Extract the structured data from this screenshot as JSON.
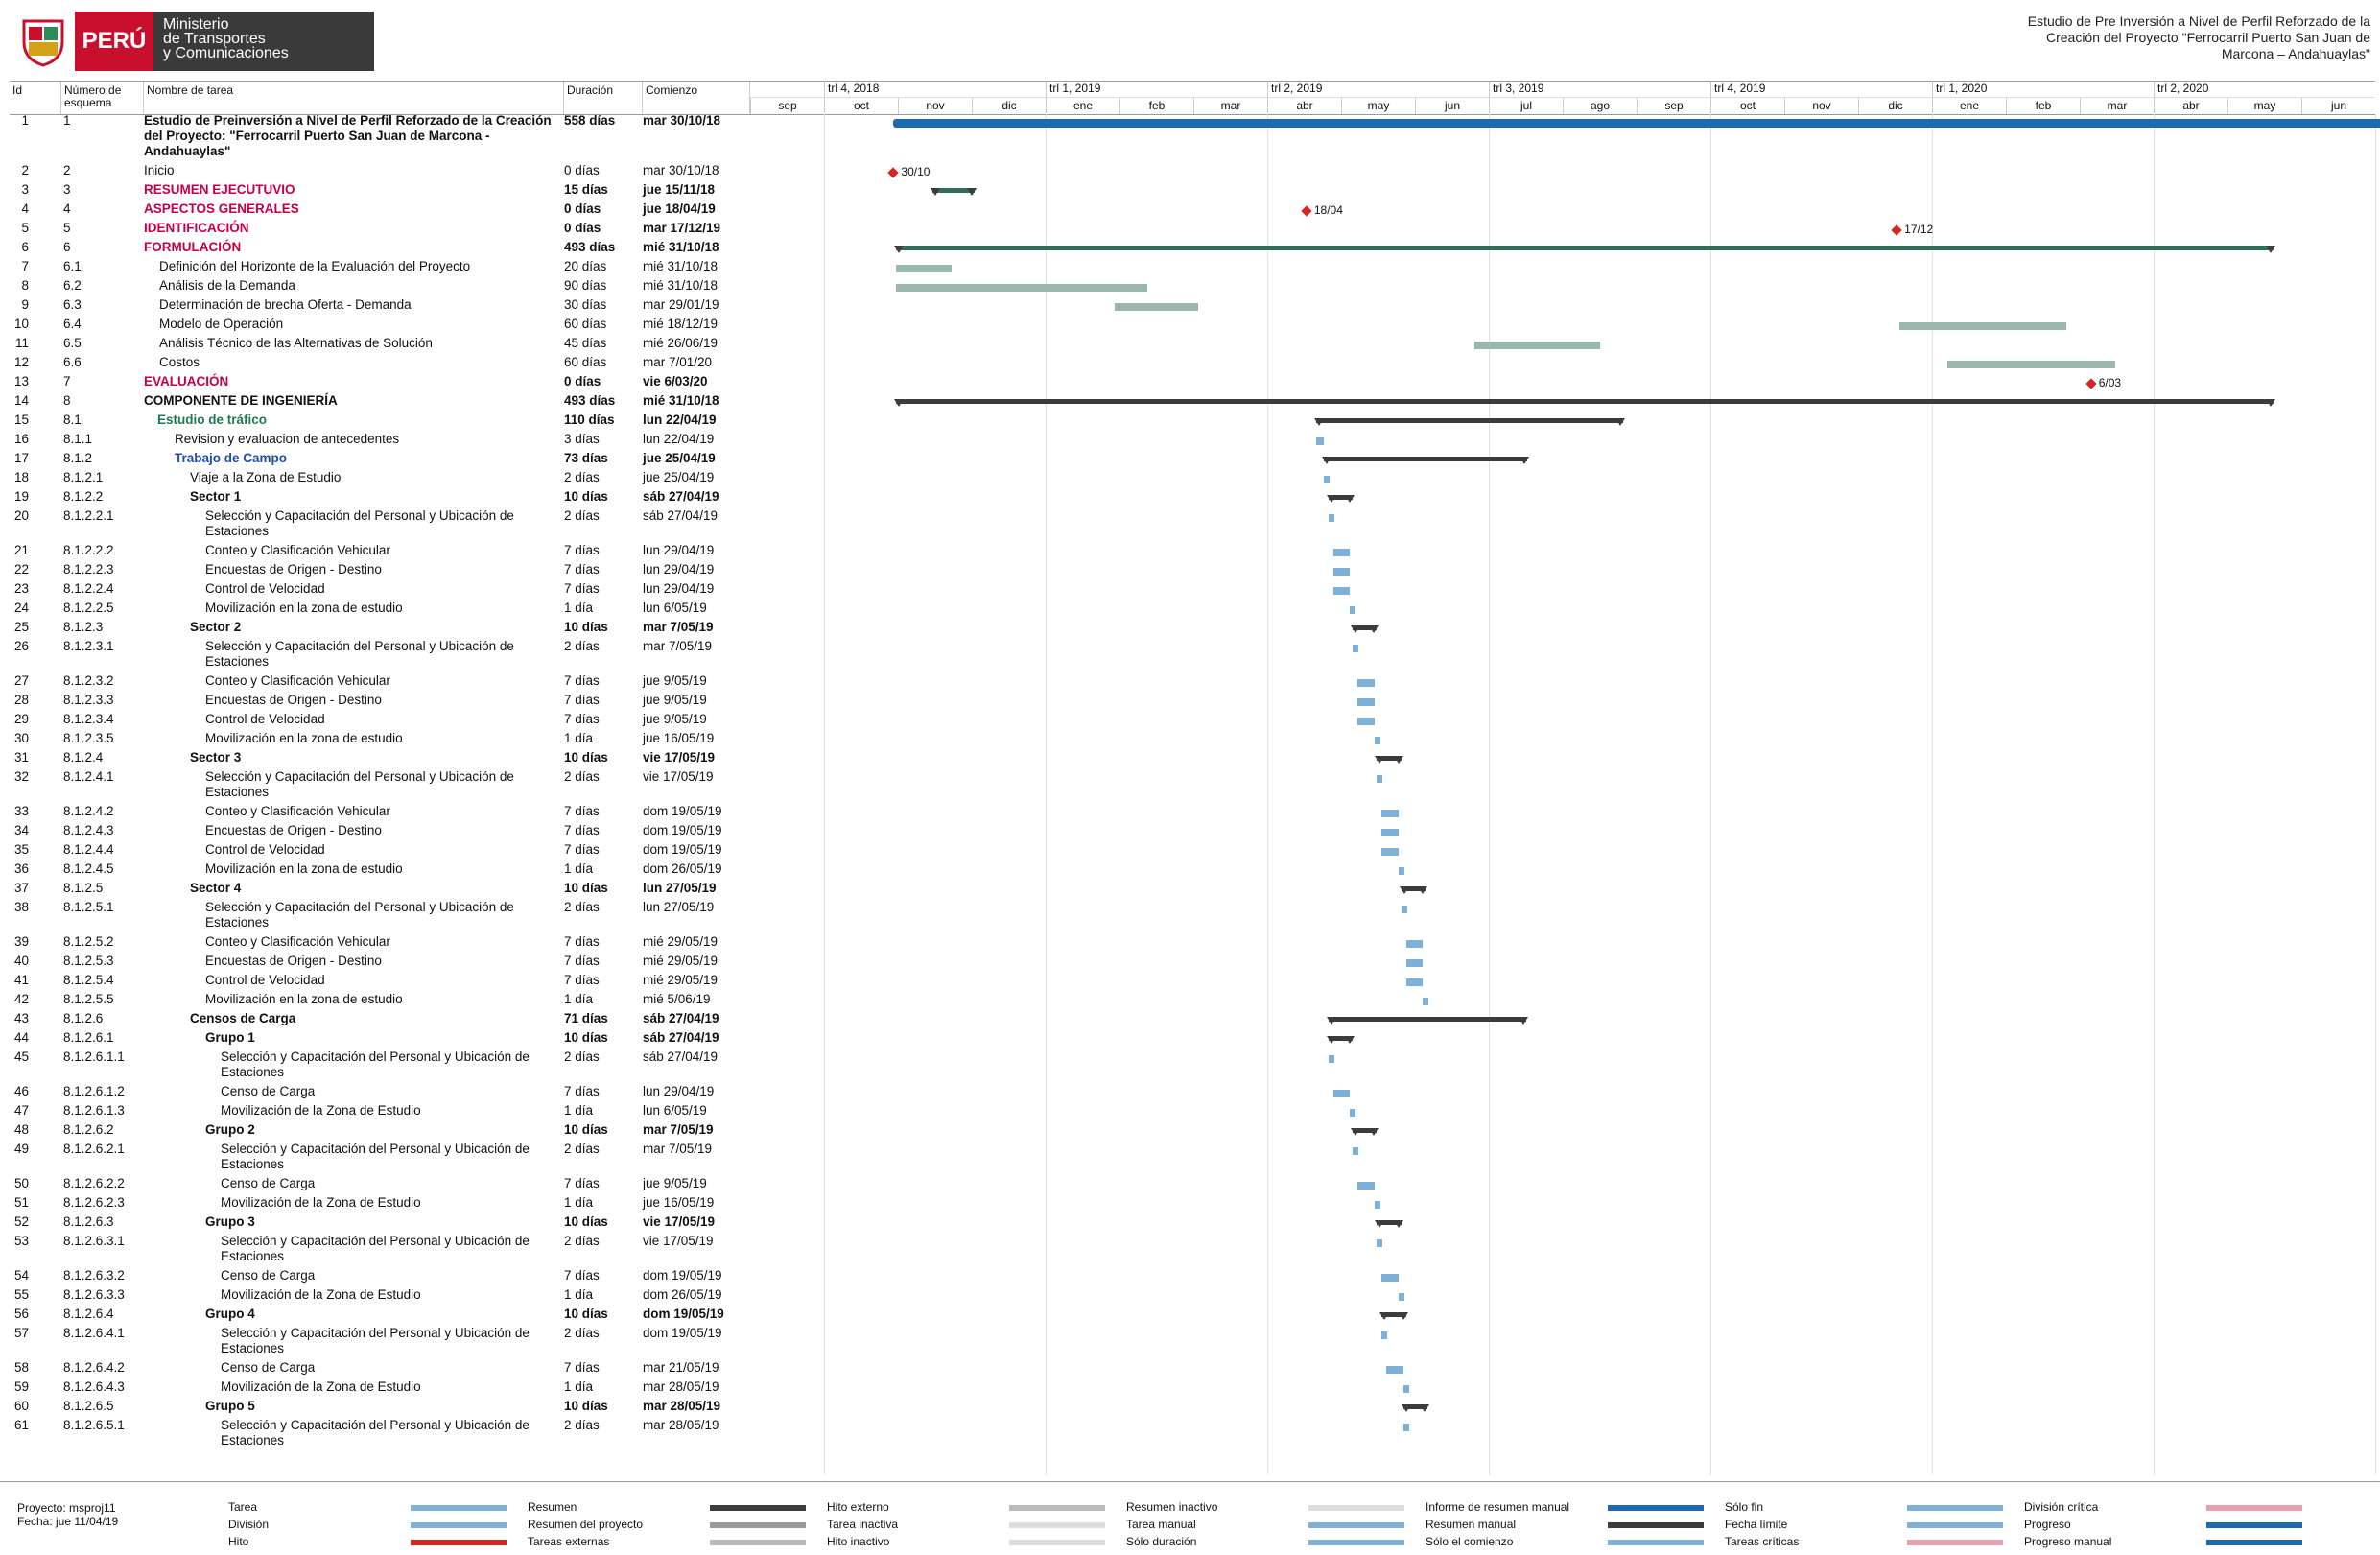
{
  "header": {
    "logo_peru": "PERÚ",
    "logo_ministry": [
      "Ministerio",
      "de Transportes",
      "y Comunicaciones"
    ],
    "right_lines": [
      "Estudio de Pre Inversión a Nivel de Perfil Reforzado de la",
      "Creación del Proyecto \"Ferrocarril Puerto San Juan de",
      "Marcona – Andahuaylas\""
    ]
  },
  "columns": {
    "id": "Id",
    "wbs": "Número de esquema",
    "name": "Nombre de tarea",
    "duration": "Duración",
    "start": "Comienzo"
  },
  "timescale": {
    "quarters": [
      "trl 4, 2018",
      "trl 1, 2019",
      "trl 2, 2019",
      "trl 3, 2019",
      "trl 4, 2019",
      "trl 1, 2020",
      "trl 2, 2020"
    ],
    "months": [
      "sep",
      "oct",
      "nov",
      "dic",
      "ene",
      "feb",
      "mar",
      "abr",
      "may",
      "jun",
      "jul",
      "ago",
      "sep",
      "oct",
      "nov",
      "dic",
      "ene",
      "feb",
      "mar",
      "abr",
      "may",
      "jun"
    ]
  },
  "tasks": [
    {
      "id": "1",
      "wbs": "1",
      "name": "Estudio de Preinversión a Nivel de Perfil Reforzado de la Creación del Proyecto: \"Ferrocarril Puerto San Juan de Marcona - Andahuaylas\"",
      "dur": "558 días",
      "start": "mar 30/10/18",
      "style": "bold"
    },
    {
      "id": "2",
      "wbs": "2",
      "name": "Inicio",
      "dur": "0 días",
      "start": "mar 30/10/18",
      "style": ""
    },
    {
      "id": "3",
      "wbs": "3",
      "name": "RESUMEN EJECUTUVIO",
      "dur": "15 días",
      "start": "jue 15/11/18",
      "style": "red"
    },
    {
      "id": "4",
      "wbs": "4",
      "name": "ASPECTOS GENERALES",
      "dur": "0 días",
      "start": "jue 18/04/19",
      "style": "red"
    },
    {
      "id": "5",
      "wbs": "5",
      "name": "IDENTIFICACIÓN",
      "dur": "0 días",
      "start": "mar 17/12/19",
      "style": "red"
    },
    {
      "id": "6",
      "wbs": "6",
      "name": "FORMULACIÓN",
      "dur": "493 días",
      "start": "mié 31/10/18",
      "style": "red"
    },
    {
      "id": "7",
      "wbs": "6.1",
      "name": "Definición del Horizonte de la Evaluación del Proyecto",
      "dur": "20 días",
      "start": "mié 31/10/18",
      "style": "i1"
    },
    {
      "id": "8",
      "wbs": "6.2",
      "name": "Análisis de la Demanda",
      "dur": "90 días",
      "start": "mié 31/10/18",
      "style": "i1"
    },
    {
      "id": "9",
      "wbs": "6.3",
      "name": "Determinación de brecha Oferta - Demanda",
      "dur": "30 días",
      "start": "mar 29/01/19",
      "style": "i1"
    },
    {
      "id": "10",
      "wbs": "6.4",
      "name": "Modelo de Operación",
      "dur": "60 días",
      "start": "mié 18/12/19",
      "style": "i1"
    },
    {
      "id": "11",
      "wbs": "6.5",
      "name": "Análisis Técnico de las Alternativas de Solución",
      "dur": "45 días",
      "start": "mié 26/06/19",
      "style": "i1"
    },
    {
      "id": "12",
      "wbs": "6.6",
      "name": "Costos",
      "dur": "60 días",
      "start": "mar 7/01/20",
      "style": "i1"
    },
    {
      "id": "13",
      "wbs": "7",
      "name": "EVALUACIÓN",
      "dur": "0 días",
      "start": "vie 6/03/20",
      "style": "red"
    },
    {
      "id": "14",
      "wbs": "8",
      "name": "COMPONENTE DE INGENIERÍA",
      "dur": "493 días",
      "start": "mié 31/10/18",
      "style": "bold"
    },
    {
      "id": "15",
      "wbs": "8.1",
      "name": "Estudio de tráfico",
      "dur": "110 días",
      "start": "lun 22/04/19",
      "style": "green"
    },
    {
      "id": "16",
      "wbs": "8.1.1",
      "name": "Revision y evaluacion de antecedentes",
      "dur": "3 días",
      "start": "lun 22/04/19",
      "style": "i2"
    },
    {
      "id": "17",
      "wbs": "8.1.2",
      "name": "Trabajo de Campo",
      "dur": "73 días",
      "start": "jue 25/04/19",
      "style": "blue"
    },
    {
      "id": "18",
      "wbs": "8.1.2.1",
      "name": "Viaje a la Zona de Estudio",
      "dur": "2 días",
      "start": "jue 25/04/19",
      "style": "i3"
    },
    {
      "id": "19",
      "wbs": "8.1.2.2",
      "name": "Sector 1",
      "dur": "10 días",
      "start": "sáb 27/04/19",
      "style": "bi3"
    },
    {
      "id": "20",
      "wbs": "8.1.2.2.1",
      "name": "Selección y Capacitación del Personal y Ubicación de Estaciones",
      "dur": "2 días",
      "start": "sáb 27/04/19",
      "style": "i4"
    },
    {
      "id": "21",
      "wbs": "8.1.2.2.2",
      "name": "Conteo y Clasificación Vehicular",
      "dur": "7 días",
      "start": "lun 29/04/19",
      "style": "i4"
    },
    {
      "id": "22",
      "wbs": "8.1.2.2.3",
      "name": "Encuestas de Origen - Destino",
      "dur": "7 días",
      "start": "lun 29/04/19",
      "style": "i4"
    },
    {
      "id": "23",
      "wbs": "8.1.2.2.4",
      "name": "Control de Velocidad",
      "dur": "7 días",
      "start": "lun 29/04/19",
      "style": "i4"
    },
    {
      "id": "24",
      "wbs": "8.1.2.2.5",
      "name": "Movilización en la zona de estudio",
      "dur": "1 día",
      "start": "lun 6/05/19",
      "style": "i4"
    },
    {
      "id": "25",
      "wbs": "8.1.2.3",
      "name": "Sector 2",
      "dur": "10 días",
      "start": "mar 7/05/19",
      "style": "bi3"
    },
    {
      "id": "26",
      "wbs": "8.1.2.3.1",
      "name": "Selección y Capacitación del Personal y Ubicación de Estaciones",
      "dur": "2 días",
      "start": "mar 7/05/19",
      "style": "i4"
    },
    {
      "id": "27",
      "wbs": "8.1.2.3.2",
      "name": "Conteo y Clasificación Vehicular",
      "dur": "7 días",
      "start": "jue 9/05/19",
      "style": "i4"
    },
    {
      "id": "28",
      "wbs": "8.1.2.3.3",
      "name": "Encuestas de Origen - Destino",
      "dur": "7 días",
      "start": "jue 9/05/19",
      "style": "i4"
    },
    {
      "id": "29",
      "wbs": "8.1.2.3.4",
      "name": "Control de Velocidad",
      "dur": "7 días",
      "start": "jue 9/05/19",
      "style": "i4"
    },
    {
      "id": "30",
      "wbs": "8.1.2.3.5",
      "name": "Movilización en la zona de estudio",
      "dur": "1 día",
      "start": "jue 16/05/19",
      "style": "i4"
    },
    {
      "id": "31",
      "wbs": "8.1.2.4",
      "name": "Sector 3",
      "dur": "10 días",
      "start": "vie 17/05/19",
      "style": "bi3"
    },
    {
      "id": "32",
      "wbs": "8.1.2.4.1",
      "name": "Selección y Capacitación del Personal y Ubicación de Estaciones",
      "dur": "2 días",
      "start": "vie 17/05/19",
      "style": "i4"
    },
    {
      "id": "33",
      "wbs": "8.1.2.4.2",
      "name": "Conteo y Clasificación Vehicular",
      "dur": "7 días",
      "start": "dom 19/05/19",
      "style": "i4"
    },
    {
      "id": "34",
      "wbs": "8.1.2.4.3",
      "name": "Encuestas de Origen - Destino",
      "dur": "7 días",
      "start": "dom 19/05/19",
      "style": "i4"
    },
    {
      "id": "35",
      "wbs": "8.1.2.4.4",
      "name": "Control de Velocidad",
      "dur": "7 días",
      "start": "dom 19/05/19",
      "style": "i4"
    },
    {
      "id": "36",
      "wbs": "8.1.2.4.5",
      "name": "Movilización en la zona de estudio",
      "dur": "1 día",
      "start": "dom 26/05/19",
      "style": "i4"
    },
    {
      "id": "37",
      "wbs": "8.1.2.5",
      "name": "Sector 4",
      "dur": "10 días",
      "start": "lun 27/05/19",
      "style": "bi3"
    },
    {
      "id": "38",
      "wbs": "8.1.2.5.1",
      "name": "Selección y Capacitación del Personal y Ubicación de Estaciones",
      "dur": "2 días",
      "start": "lun 27/05/19",
      "style": "i4"
    },
    {
      "id": "39",
      "wbs": "8.1.2.5.2",
      "name": "Conteo y Clasificación Vehicular",
      "dur": "7 días",
      "start": "mié 29/05/19",
      "style": "i4"
    },
    {
      "id": "40",
      "wbs": "8.1.2.5.3",
      "name": "Encuestas de Origen - Destino",
      "dur": "7 días",
      "start": "mié 29/05/19",
      "style": "i4"
    },
    {
      "id": "41",
      "wbs": "8.1.2.5.4",
      "name": "Control de Velocidad",
      "dur": "7 días",
      "start": "mié 29/05/19",
      "style": "i4"
    },
    {
      "id": "42",
      "wbs": "8.1.2.5.5",
      "name": "Movilización en la zona de estudio",
      "dur": "1 día",
      "start": "mié 5/06/19",
      "style": "i4"
    },
    {
      "id": "43",
      "wbs": "8.1.2.6",
      "name": "Censos de Carga",
      "dur": "71 días",
      "start": "sáb 27/04/19",
      "style": "bi3"
    },
    {
      "id": "44",
      "wbs": "8.1.2.6.1",
      "name": "Grupo 1",
      "dur": "10 días",
      "start": "sáb 27/04/19",
      "style": "bi4"
    },
    {
      "id": "45",
      "wbs": "8.1.2.6.1.1",
      "name": "Selección y Capacitación del Personal y Ubicación de Estaciones",
      "dur": "2 días",
      "start": "sáb 27/04/19",
      "style": "i5"
    },
    {
      "id": "46",
      "wbs": "8.1.2.6.1.2",
      "name": "Censo de Carga",
      "dur": "7 días",
      "start": "lun 29/04/19",
      "style": "i5"
    },
    {
      "id": "47",
      "wbs": "8.1.2.6.1.3",
      "name": "Movilización de la Zona de Estudio",
      "dur": "1 día",
      "start": "lun 6/05/19",
      "style": "i5"
    },
    {
      "id": "48",
      "wbs": "8.1.2.6.2",
      "name": "Grupo 2",
      "dur": "10 días",
      "start": "mar 7/05/19",
      "style": "bi4"
    },
    {
      "id": "49",
      "wbs": "8.1.2.6.2.1",
      "name": "Selección y Capacitación del Personal y Ubicación de Estaciones",
      "dur": "2 días",
      "start": "mar 7/05/19",
      "style": "i5"
    },
    {
      "id": "50",
      "wbs": "8.1.2.6.2.2",
      "name": "Censo de Carga",
      "dur": "7 días",
      "start": "jue 9/05/19",
      "style": "i5"
    },
    {
      "id": "51",
      "wbs": "8.1.2.6.2.3",
      "name": "Movilización de la Zona de Estudio",
      "dur": "1 día",
      "start": "jue 16/05/19",
      "style": "i5"
    },
    {
      "id": "52",
      "wbs": "8.1.2.6.3",
      "name": "Grupo 3",
      "dur": "10 días",
      "start": "vie 17/05/19",
      "style": "bi4"
    },
    {
      "id": "53",
      "wbs": "8.1.2.6.3.1",
      "name": "Selección y Capacitación del Personal y Ubicación de Estaciones",
      "dur": "2 días",
      "start": "vie 17/05/19",
      "style": "i5"
    },
    {
      "id": "54",
      "wbs": "8.1.2.6.3.2",
      "name": "Censo de Carga",
      "dur": "7 días",
      "start": "dom 19/05/19",
      "style": "i5"
    },
    {
      "id": "55",
      "wbs": "8.1.2.6.3.3",
      "name": "Movilización de la Zona de Estudio",
      "dur": "1 día",
      "start": "dom 26/05/19",
      "style": "i5"
    },
    {
      "id": "56",
      "wbs": "8.1.2.6.4",
      "name": "Grupo 4",
      "dur": "10 días",
      "start": "dom 19/05/19",
      "style": "bi4"
    },
    {
      "id": "57",
      "wbs": "8.1.2.6.4.1",
      "name": "Selección y Capacitación del Personal y Ubicación de Estaciones",
      "dur": "2 días",
      "start": "dom 19/05/19",
      "style": "i5"
    },
    {
      "id": "58",
      "wbs": "8.1.2.6.4.2",
      "name": "Censo de Carga",
      "dur": "7 días",
      "start": "mar 21/05/19",
      "style": "i5"
    },
    {
      "id": "59",
      "wbs": "8.1.2.6.4.3",
      "name": "Movilización de la Zona de Estudio",
      "dur": "1 día",
      "start": "mar 28/05/19",
      "style": "i5"
    },
    {
      "id": "60",
      "wbs": "8.1.2.6.5",
      "name": "Grupo 5",
      "dur": "10 días",
      "start": "mar 28/05/19",
      "style": "bi4"
    },
    {
      "id": "61",
      "wbs": "8.1.2.6.5.1",
      "name": "Selección y Capacitación del Personal y Ubicación de Estaciones",
      "dur": "2 días",
      "start": "mar 28/05/19",
      "style": "i5"
    }
  ],
  "milestones": {
    "inicio_label": "Inicio",
    "inicio_date": "30/10",
    "aspectos_date": "18/04",
    "ident_date": "17/12",
    "eval_date": "6/03"
  },
  "legend": {
    "project": "Proyecto: msproj11",
    "date": "Fecha: jue 11/04/19",
    "items": [
      [
        "Tarea",
        "División",
        "Hito"
      ],
      [
        "Resumen",
        "Resumen del proyecto",
        "Tareas externas"
      ],
      [
        "Hito externo",
        "Tarea inactiva",
        "Hito inactivo"
      ],
      [
        "Resumen inactivo",
        "Tarea manual",
        "Sólo duración"
      ],
      [
        "Informe de resumen manual",
        "Resumen manual",
        "Sólo el comienzo"
      ],
      [
        "Sólo fin",
        "Fecha límite",
        "Tareas críticas"
      ],
      [
        "División crítica",
        "Progreso",
        "Progreso manual"
      ]
    ]
  }
}
